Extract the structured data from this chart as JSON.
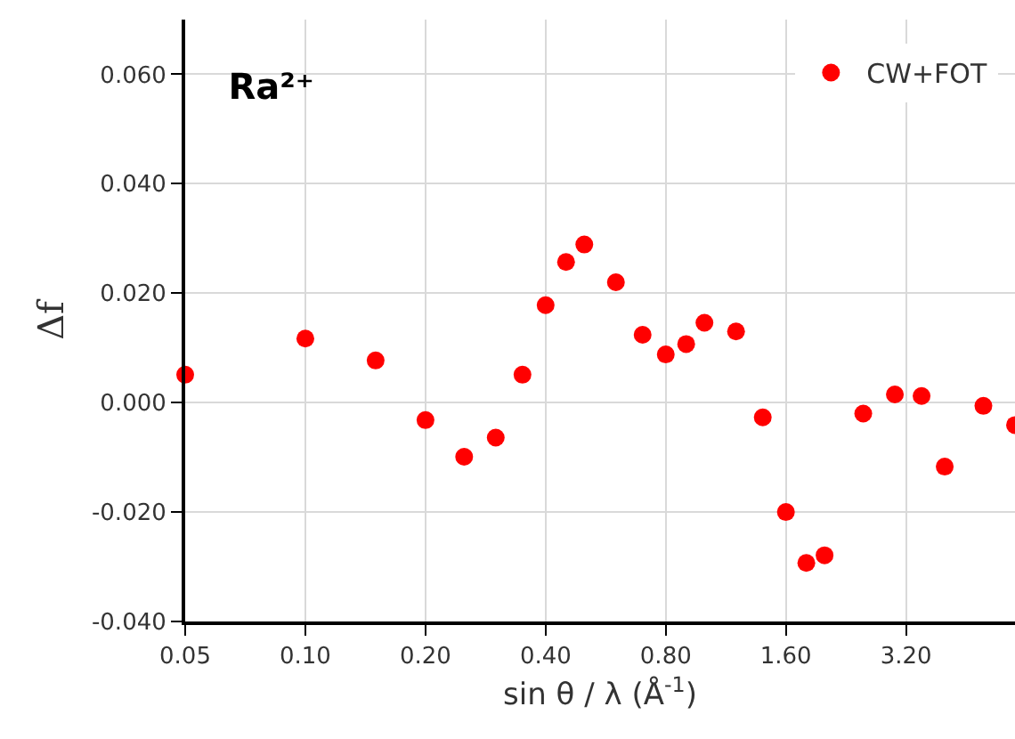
{
  "chart_data": {
    "type": "scatter",
    "title": "Ra²⁺",
    "xlabel": "sin θ / λ (Å$^{-1}$)",
    "ylabel": "Δf",
    "log": "x",
    "xlim": [
      0.05,
      6.0
    ],
    "xticks": [
      {
        "value": 0.05,
        "label": "0.05"
      },
      {
        "value": 0.1,
        "label": "0.10"
      },
      {
        "value": 0.2,
        "label": "0.20"
      },
      {
        "value": 0.4,
        "label": "0.40"
      },
      {
        "value": 0.8,
        "label": "0.80"
      },
      {
        "value": 1.6,
        "label": "1.60"
      },
      {
        "value": 3.2,
        "label": "3.20"
      }
    ],
    "ylim": [
      -0.04,
      0.07
    ],
    "yticks": [
      {
        "value": -0.04,
        "label": "-0.040"
      },
      {
        "value": -0.02,
        "label": "-0.020"
      },
      {
        "value": 0,
        "label": "0.000"
      },
      {
        "value": 0.02,
        "label": "0.020"
      },
      {
        "value": 0.04,
        "label": "0.040"
      },
      {
        "value": 0.06,
        "label": "0.060"
      }
    ],
    "grid": true,
    "legend": "top right",
    "marker": "circle",
    "series": [
      {
        "name": "CW+FOT",
        "color": "#ff0000",
        "x": [
          0.05,
          0.1,
          0.15,
          0.2,
          0.25,
          0.3,
          0.35,
          0.4,
          0.45,
          0.5,
          0.6,
          0.7,
          0.8,
          0.9,
          1.0,
          1.2,
          1.4,
          1.6,
          1.8,
          2.0,
          2.5,
          3.0,
          3.5,
          4.0,
          5.0,
          6.0
        ],
        "values": [
          0.0051,
          0.0117,
          0.0077,
          -0.0032,
          -0.0099,
          -0.0064,
          0.0051,
          0.0178,
          0.0257,
          0.0289,
          0.022,
          0.0124,
          0.0088,
          0.0107,
          0.0146,
          0.013,
          -0.0027,
          -0.02,
          -0.0293,
          -0.0279,
          -0.002,
          0.0015,
          0.0012,
          -0.0117,
          -0.0006,
          -0.0041
        ]
      }
    ]
  }
}
